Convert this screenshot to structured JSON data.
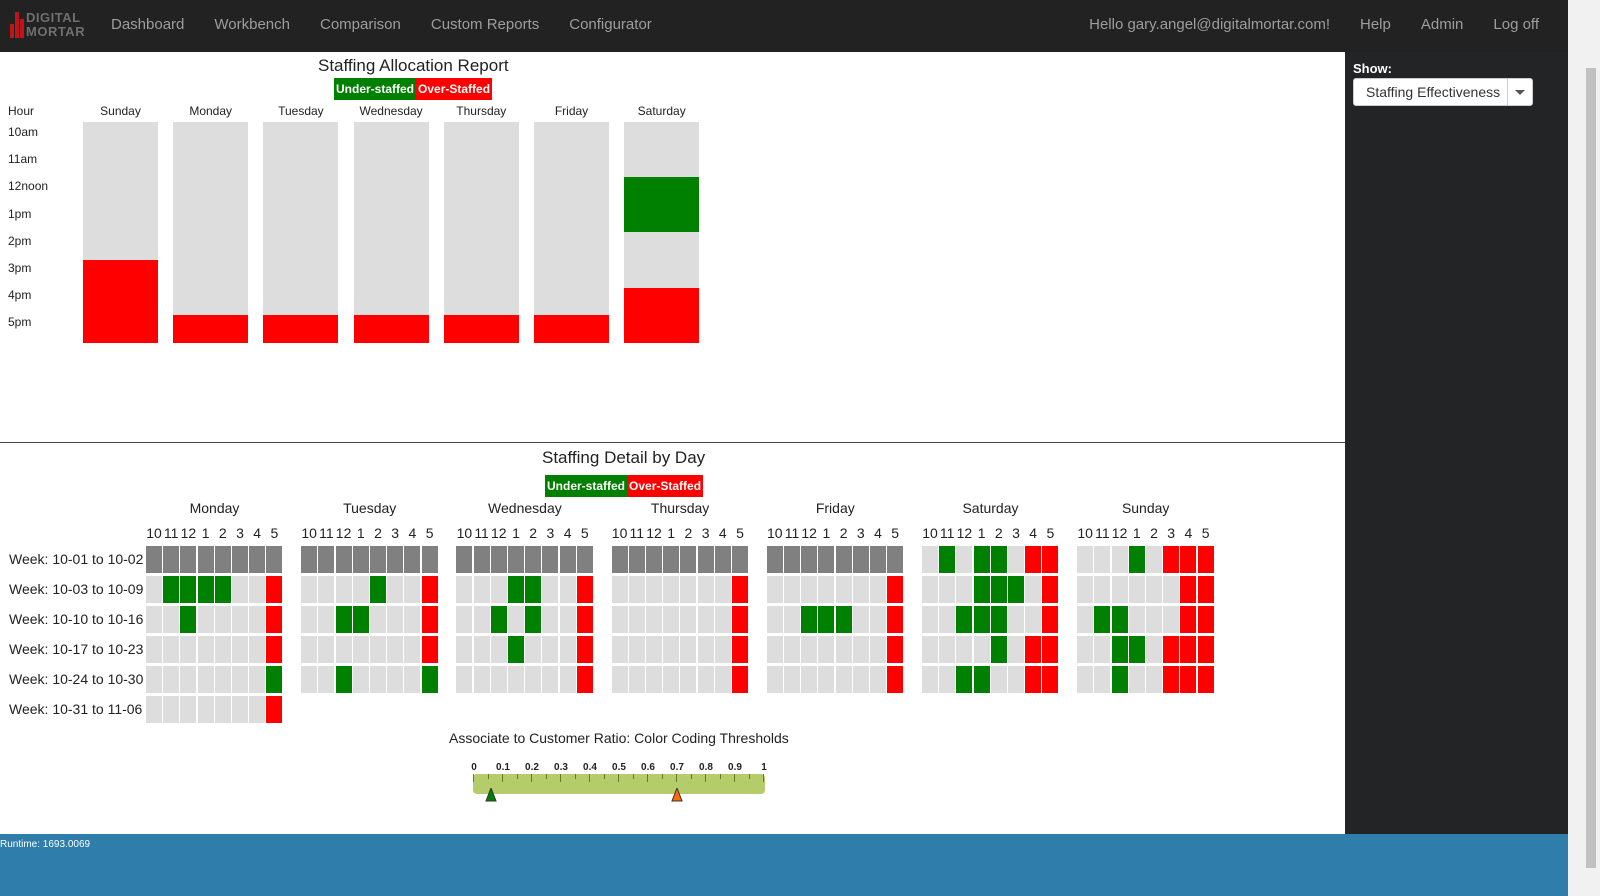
{
  "nav": {
    "logo_line1": "DIGITAL",
    "logo_line2": "MORTAR",
    "links": [
      "Dashboard",
      "Workbench",
      "Comparison",
      "Custom Reports",
      "Configurator"
    ],
    "greeting": "Hello gary.angel@digitalmortar.com!",
    "help": "Help",
    "admin": "Admin",
    "logoff": "Log off"
  },
  "sidebar": {
    "show_label": "Show:",
    "show_value": "Staffing Effectiveness"
  },
  "colors": {
    "under": "#008000",
    "over": "#ff0000",
    "no_data": "#808080",
    "neutral": "#dddddd"
  },
  "allocation": {
    "title": "Staffing Allocation Report",
    "legend_under": "Under-staffed",
    "legend_over": "Over-Staffed",
    "hour_header": "Hour",
    "hours": [
      "10am",
      "11am",
      "12noon",
      "1pm",
      "2pm",
      "3pm",
      "4pm",
      "5pm"
    ],
    "days": [
      {
        "name": "Sunday",
        "cells": [
          "n",
          "n",
          "n",
          "n",
          "n",
          "o",
          "o",
          "o"
        ]
      },
      {
        "name": "Monday",
        "cells": [
          "n",
          "n",
          "n",
          "n",
          "n",
          "n",
          "n",
          "o"
        ]
      },
      {
        "name": "Tuesday",
        "cells": [
          "n",
          "n",
          "n",
          "n",
          "n",
          "n",
          "n",
          "o"
        ]
      },
      {
        "name": "Wednesday",
        "cells": [
          "n",
          "n",
          "n",
          "n",
          "n",
          "n",
          "n",
          "o"
        ]
      },
      {
        "name": "Thursday",
        "cells": [
          "n",
          "n",
          "n",
          "n",
          "n",
          "n",
          "n",
          "o"
        ]
      },
      {
        "name": "Friday",
        "cells": [
          "n",
          "n",
          "n",
          "n",
          "n",
          "n",
          "n",
          "o"
        ]
      },
      {
        "name": "Saturday",
        "cells": [
          "n",
          "n",
          "u",
          "u",
          "n",
          "n",
          "o",
          "o"
        ]
      }
    ]
  },
  "detail": {
    "title": "Staffing Detail by Day",
    "legend_under": "Under-staffed",
    "legend_over": "Over-Staffed",
    "hour_labels": [
      "10",
      "11",
      "12",
      "1",
      "2",
      "3",
      "4",
      "5"
    ],
    "weeks": [
      "Week: 10-01 to 10-02",
      "Week: 10-03 to 10-09",
      "Week: 10-10 to 10-16",
      "Week: 10-17 to 10-23",
      "Week: 10-24 to 10-30",
      "Week: 10-31 to 11-06"
    ],
    "days": [
      {
        "name": "Monday",
        "rows": [
          [
            "d",
            "d",
            "d",
            "d",
            "d",
            "d",
            "d",
            "d"
          ],
          [
            "n",
            "u",
            "u",
            "u",
            "u",
            "n",
            "n",
            "o"
          ],
          [
            "n",
            "n",
            "u",
            "n",
            "n",
            "n",
            "n",
            "o"
          ],
          [
            "n",
            "n",
            "n",
            "n",
            "n",
            "n",
            "n",
            "o"
          ],
          [
            "n",
            "n",
            "n",
            "n",
            "n",
            "n",
            "n",
            "u"
          ],
          [
            "n",
            "n",
            "n",
            "n",
            "n",
            "n",
            "n",
            "o"
          ]
        ]
      },
      {
        "name": "Tuesday",
        "rows": [
          [
            "d",
            "d",
            "d",
            "d",
            "d",
            "d",
            "d",
            "d"
          ],
          [
            "n",
            "n",
            "n",
            "n",
            "u",
            "n",
            "n",
            "o"
          ],
          [
            "n",
            "n",
            "u",
            "u",
            "n",
            "n",
            "n",
            "o"
          ],
          [
            "n",
            "n",
            "n",
            "n",
            "n",
            "n",
            "n",
            "o"
          ],
          [
            "n",
            "n",
            "u",
            "n",
            "n",
            "n",
            "n",
            "u"
          ]
        ]
      },
      {
        "name": "Wednesday",
        "rows": [
          [
            "d",
            "d",
            "d",
            "d",
            "d",
            "d",
            "d",
            "d"
          ],
          [
            "n",
            "n",
            "n",
            "u",
            "u",
            "n",
            "n",
            "o"
          ],
          [
            "n",
            "n",
            "u",
            "n",
            "u",
            "n",
            "n",
            "o"
          ],
          [
            "n",
            "n",
            "n",
            "u",
            "n",
            "n",
            "n",
            "o"
          ],
          [
            "n",
            "n",
            "n",
            "n",
            "n",
            "n",
            "n",
            "o"
          ]
        ]
      },
      {
        "name": "Thursday",
        "rows": [
          [
            "d",
            "d",
            "d",
            "d",
            "d",
            "d",
            "d",
            "d"
          ],
          [
            "n",
            "n",
            "n",
            "n",
            "n",
            "n",
            "n",
            "o"
          ],
          [
            "n",
            "n",
            "n",
            "n",
            "n",
            "n",
            "n",
            "o"
          ],
          [
            "n",
            "n",
            "n",
            "n",
            "n",
            "n",
            "n",
            "o"
          ],
          [
            "n",
            "n",
            "n",
            "n",
            "n",
            "n",
            "n",
            "o"
          ]
        ]
      },
      {
        "name": "Friday",
        "rows": [
          [
            "d",
            "d",
            "d",
            "d",
            "d",
            "d",
            "d",
            "d"
          ],
          [
            "n",
            "n",
            "n",
            "n",
            "n",
            "n",
            "n",
            "o"
          ],
          [
            "n",
            "n",
            "u",
            "u",
            "u",
            "n",
            "n",
            "o"
          ],
          [
            "n",
            "n",
            "n",
            "n",
            "n",
            "n",
            "n",
            "o"
          ],
          [
            "n",
            "n",
            "n",
            "n",
            "n",
            "n",
            "n",
            "o"
          ]
        ]
      },
      {
        "name": "Saturday",
        "rows": [
          [
            "n",
            "u",
            "n",
            "u",
            "u",
            "n",
            "o",
            "o"
          ],
          [
            "n",
            "n",
            "n",
            "u",
            "u",
            "u",
            "n",
            "o"
          ],
          [
            "n",
            "n",
            "u",
            "u",
            "u",
            "n",
            "n",
            "o"
          ],
          [
            "n",
            "n",
            "n",
            "n",
            "u",
            "n",
            "o",
            "o"
          ],
          [
            "n",
            "n",
            "u",
            "u",
            "n",
            "n",
            "o",
            "o"
          ]
        ]
      },
      {
        "name": "Sunday",
        "rows": [
          [
            "n",
            "n",
            "n",
            "u",
            "n",
            "o",
            "o",
            "o"
          ],
          [
            "n",
            "n",
            "n",
            "n",
            "n",
            "n",
            "o",
            "o"
          ],
          [
            "n",
            "u",
            "u",
            "n",
            "n",
            "n",
            "o",
            "o"
          ],
          [
            "n",
            "n",
            "u",
            "u",
            "n",
            "o",
            "o",
            "o"
          ],
          [
            "n",
            "n",
            "u",
            "n",
            "n",
            "o",
            "o",
            "o"
          ]
        ]
      }
    ]
  },
  "thresholds": {
    "title": "Associate to Customer Ratio: Color Coding Thresholds",
    "scale": [
      "0",
      "0.1",
      "0.2",
      "0.3",
      "0.4",
      "0.5",
      "0.6",
      "0.7",
      "0.8",
      "0.9",
      "1"
    ],
    "markers": [
      {
        "value": 0.06,
        "color": "#008000"
      },
      {
        "value": 0.7,
        "color": "#ff6a00"
      }
    ]
  },
  "footer": {
    "runtime": "Runtime: 1693.0069"
  }
}
